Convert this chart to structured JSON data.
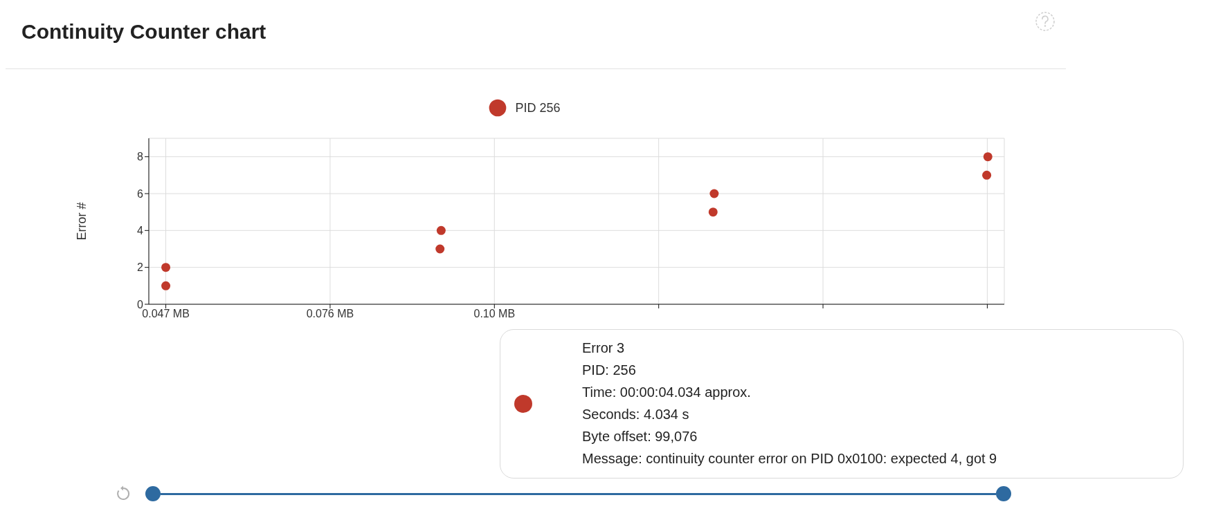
{
  "chart_data": {
    "type": "scatter",
    "title": "Continuity Counter chart",
    "ylabel": "Error #",
    "x": [
      0.047,
      0.047,
      0.0954,
      0.0956,
      0.1436,
      0.1438,
      0.1919,
      0.1921
    ],
    "series": [
      {
        "name": "PID 256",
        "color": "#c0392b",
        "values": [
          1,
          2,
          3,
          4,
          5,
          6,
          7,
          8
        ]
      }
    ],
    "xlim": [
      0.044,
      0.195
    ],
    "xticks": [
      {
        "value": 0.047,
        "label": "0.047 MB"
      },
      {
        "value": 0.076,
        "label": "0.076 MB"
      },
      {
        "value": 0.105,
        "label": "0.10 MB"
      },
      {
        "value": 0.134,
        "label": null
      },
      {
        "value": 0.163,
        "label": null
      },
      {
        "value": 0.192,
        "label": null
      }
    ],
    "ylim": [
      0,
      9
    ],
    "yticks": [
      0,
      2,
      4,
      6,
      8
    ],
    "grid": true,
    "legend": "top",
    "marker": "circle",
    "annotations": [
      "Error 3",
      "PID: 256",
      "Time: 00:00:04.034 approx.",
      "Seconds: 4.034 s",
      "Byte offset: 99,076",
      "Message: continuity counter error on PID 0x0100: expected 4, got 9"
    ]
  }
}
